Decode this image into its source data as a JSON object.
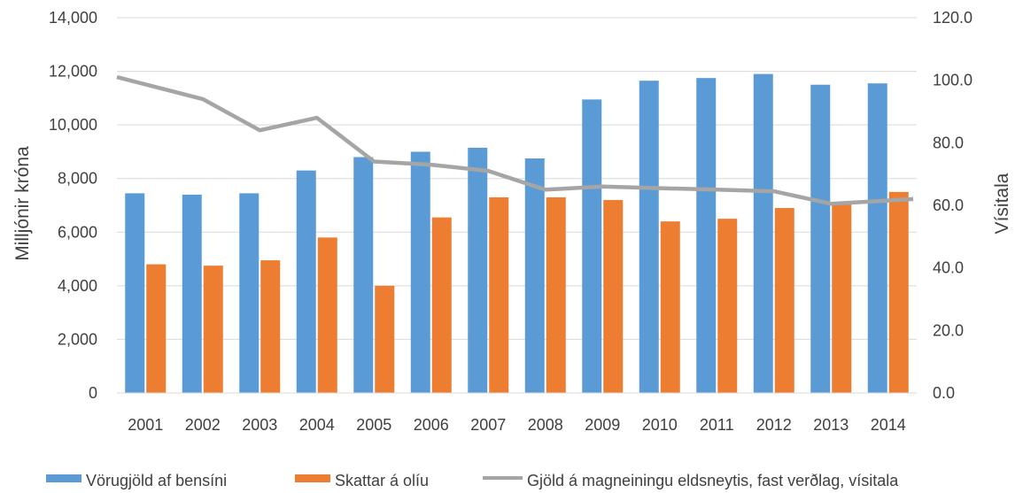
{
  "chart_data": {
    "type": "bar",
    "categories": [
      "2001",
      "2002",
      "2003",
      "2004",
      "2005",
      "2006",
      "2007",
      "2008",
      "2009",
      "2010",
      "2011",
      "2012",
      "2013",
      "2014"
    ],
    "series": [
      {
        "name": "Vörugjöld af bensíni",
        "type": "bar",
        "axis": "left",
        "color": "#5b9bd5",
        "values": [
          7450,
          7400,
          7450,
          8300,
          8800,
          9000,
          9150,
          8750,
          10950,
          11650,
          11750,
          11900,
          11500,
          11550
        ]
      },
      {
        "name": "Skattar á olíu",
        "type": "bar",
        "axis": "left",
        "color": "#ed7d31",
        "values": [
          4800,
          4750,
          4950,
          5800,
          4000,
          6550,
          7300,
          7300,
          7200,
          6400,
          6500,
          6900,
          7050,
          7500
        ]
      },
      {
        "name": "Gjöld á magneiningu eldsneytis, fast verðlag, vísitala",
        "type": "line",
        "axis": "right",
        "color": "#a5a5a5",
        "values": [
          101,
          94,
          84,
          88,
          74,
          73,
          71,
          65,
          66,
          65.5,
          65,
          64.5,
          60.5,
          62
        ]
      }
    ],
    "y_left": {
      "label": "Milljónir króna",
      "range": [
        0,
        14000
      ],
      "ticks": [
        "0",
        "2,000",
        "4,000",
        "6,000",
        "8,000",
        "10,000",
        "12,000",
        "14,000"
      ]
    },
    "y_right": {
      "label": "Vísitala",
      "range": [
        0,
        120
      ],
      "ticks": [
        "0.0",
        "20.0",
        "40.0",
        "60.0",
        "80.0",
        "100.0",
        "120.0"
      ]
    },
    "grid": true,
    "legend_position": "bottom"
  }
}
